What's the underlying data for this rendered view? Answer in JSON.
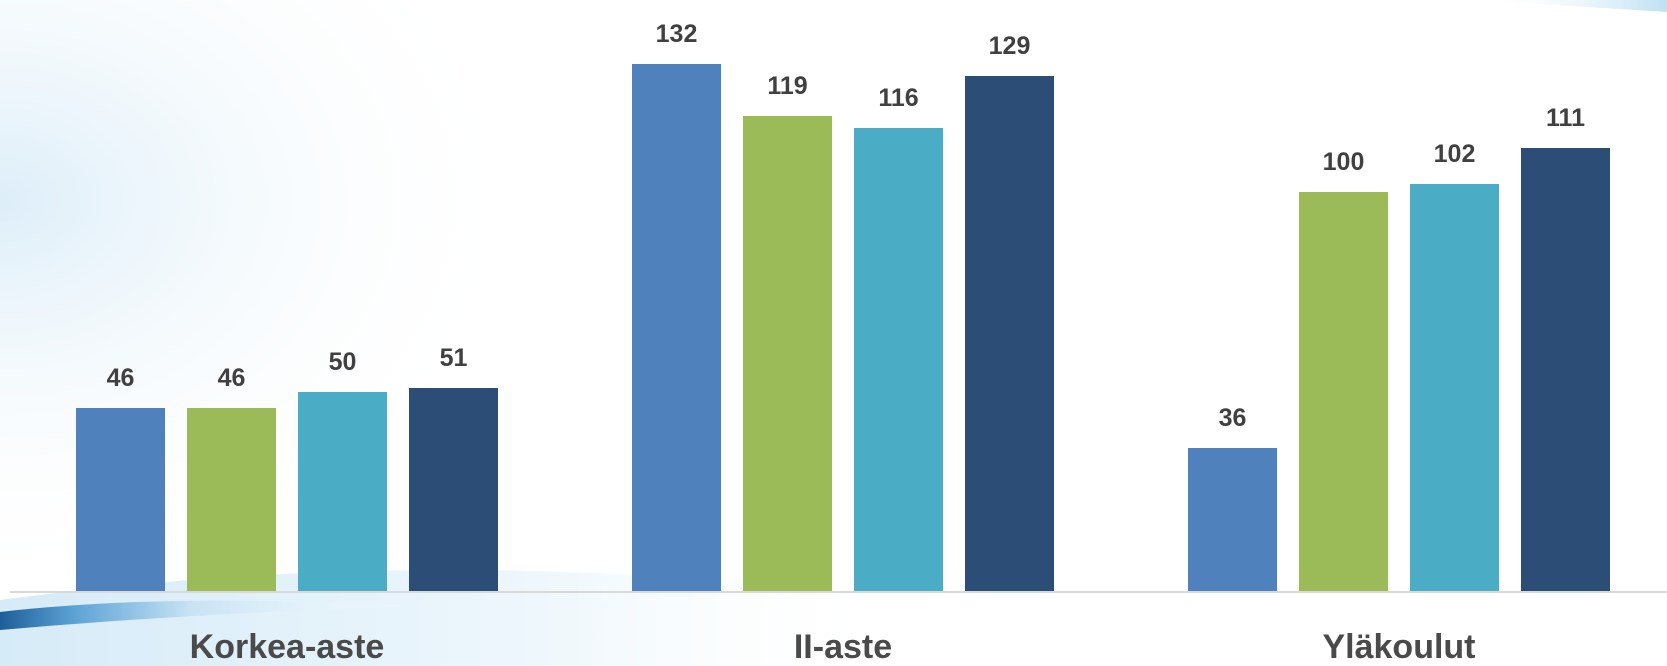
{
  "chart_data": {
    "type": "bar",
    "categories": [
      "Korkea-aste",
      "II-aste",
      "Yläkoulut"
    ],
    "series": [
      {
        "values": [
          46,
          132,
          36
        ],
        "color": "#4f81bd"
      },
      {
        "values": [
          46,
          119,
          100
        ],
        "color": "#9bbb59"
      },
      {
        "values": [
          50,
          116,
          102
        ],
        "color": "#4bacc6"
      },
      {
        "values": [
          51,
          129,
          111
        ],
        "color": "#2c4d75"
      }
    ],
    "ylim": [
      0,
      132
    ],
    "grid": false,
    "legend": "none",
    "data_labels": true
  }
}
